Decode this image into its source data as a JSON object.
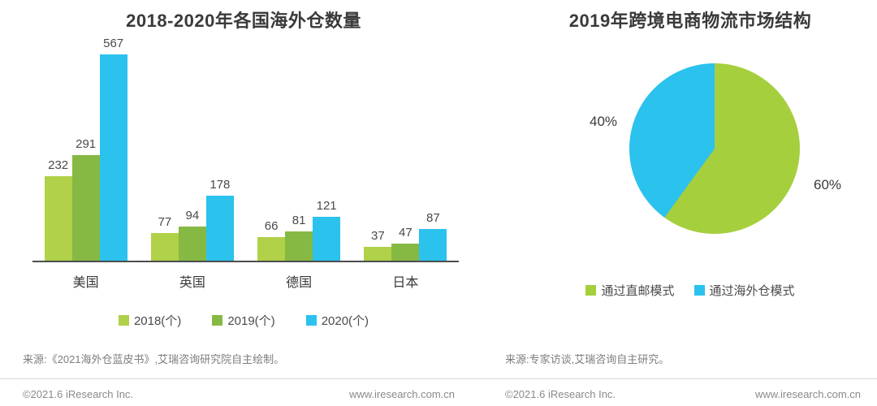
{
  "chart_data": [
    {
      "id": "overseas-warehouse-bar-chart",
      "type": "bar",
      "title": "2018-2020年各国海外仓数量",
      "categories": [
        "美国",
        "英国",
        "德国",
        "日本"
      ],
      "series": [
        {
          "name": "2018(个)",
          "color": "#b0d148",
          "values": [
            232,
            77,
            66,
            37
          ]
        },
        {
          "name": "2019(个)",
          "color": "#86b943",
          "values": [
            291,
            94,
            81,
            47
          ]
        },
        {
          "name": "2020(个)",
          "color": "#2bc2ee",
          "values": [
            567,
            178,
            121,
            87
          ]
        }
      ],
      "ylim": [
        0,
        570
      ],
      "grid": false,
      "value_labels": true,
      "legend_position": "bottom",
      "source": "来源:《2021海外仓蓝皮书》,艾瑞咨询研究院自主绘制。"
    },
    {
      "id": "logistics-market-structure-pie",
      "type": "pie",
      "title": "2019年跨境电商物流市场结构",
      "slices": [
        {
          "label": "通过直邮模式",
          "value": 60,
          "display_label": "60%",
          "color": "#a6cf3d"
        },
        {
          "label": "通过海外仓模式",
          "value": 40,
          "display_label": "40%",
          "color": "#2bc2ee"
        }
      ],
      "start_angle_deg": 0,
      "direction": "clockwise",
      "legend_position": "bottom",
      "source": "来源:专家访谈,艾瑞咨询自主研究。"
    }
  ],
  "footer": {
    "copyright": "©2021.6 iResearch Inc.",
    "website": "www.iresearch.com.cn"
  }
}
